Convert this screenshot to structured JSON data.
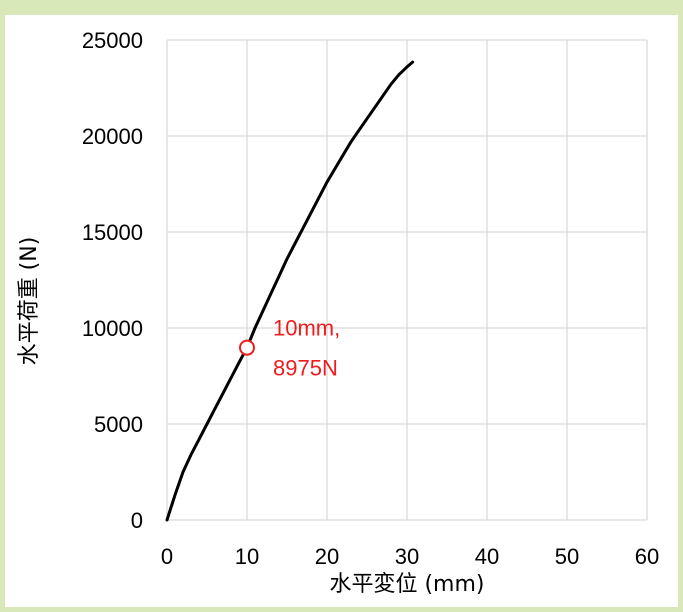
{
  "chart_data": {
    "type": "line",
    "title": "",
    "xlabel": "水平変位 (mm)",
    "ylabel": "水平荷重 (N)",
    "xlim": [
      0,
      60
    ],
    "ylim": [
      0,
      25000
    ],
    "x_ticks": [
      0,
      10,
      20,
      30,
      40,
      50,
      60
    ],
    "y_ticks": [
      0,
      5000,
      10000,
      15000,
      20000,
      25000
    ],
    "x_tick_labels": [
      "0",
      "10",
      "20",
      "30",
      "40",
      "50",
      "60"
    ],
    "y_tick_labels": [
      "0",
      "5000",
      "10000",
      "15000",
      "20000",
      "25000"
    ],
    "grid": true,
    "line_color": "#000000",
    "series": [
      {
        "x": [
          0,
          1,
          2,
          3,
          4,
          5,
          6,
          7,
          8,
          9,
          10,
          11,
          12,
          13,
          14,
          15,
          16,
          17,
          18,
          19,
          20,
          21,
          22,
          23,
          24,
          25,
          26,
          27,
          28,
          29,
          30,
          30.7
        ],
        "y": [
          0,
          1300,
          2500,
          3400,
          4200,
          5000,
          5800,
          6600,
          7400,
          8200,
          8975,
          10000,
          10900,
          11800,
          12700,
          13600,
          14400,
          15200,
          16000,
          16800,
          17600,
          18300,
          19000,
          19700,
          20300,
          20900,
          21500,
          22100,
          22700,
          23200,
          23600,
          23850
        ]
      }
    ],
    "annotation": {
      "x": 10,
      "y": 8975,
      "line1": "10mm,",
      "line2": "8975N",
      "color": "#ee1c1c"
    }
  }
}
